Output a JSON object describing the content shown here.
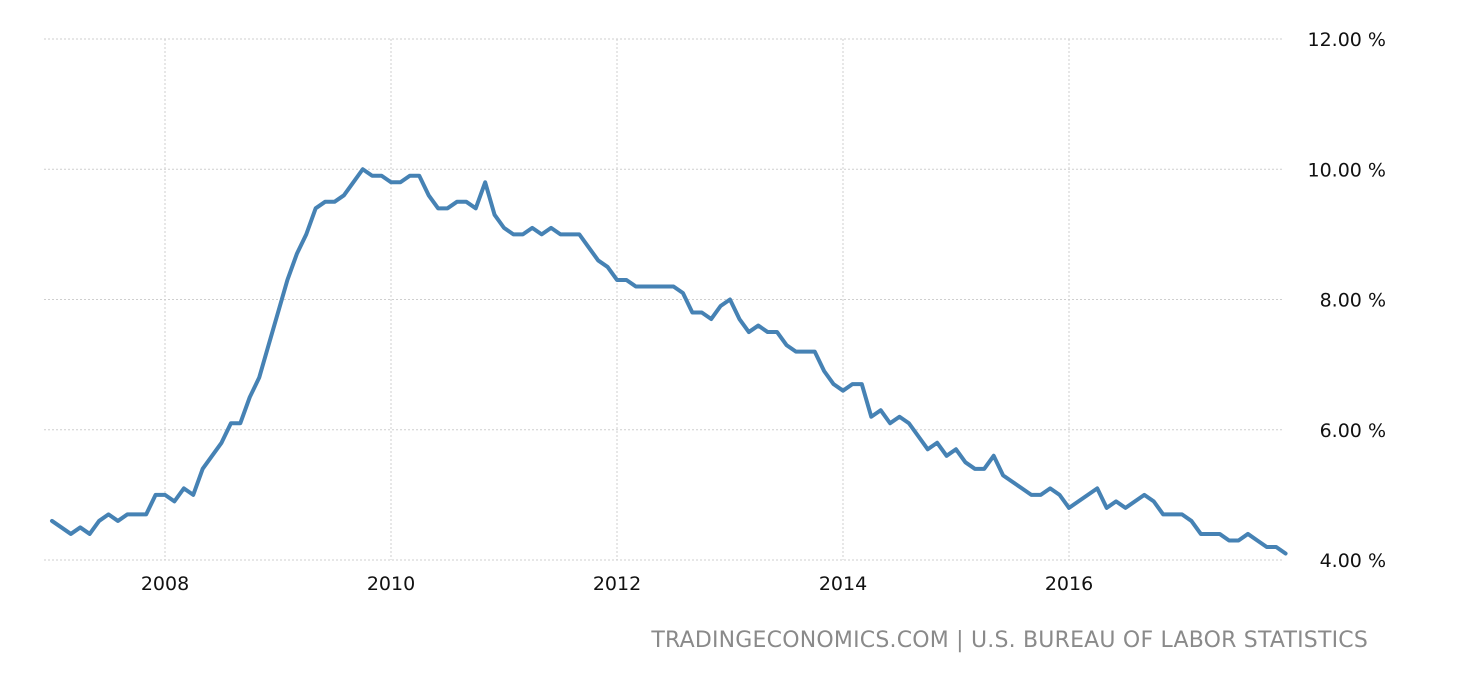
{
  "chart_data": {
    "type": "line",
    "title": "",
    "xlabel": "",
    "ylabel": "",
    "x_ticks": [
      "2008",
      "2010",
      "2012",
      "2014",
      "2016"
    ],
    "y_ticks": [
      "4.00 %",
      "6.00 %",
      "8.00 %",
      "10.00 %",
      "12.00 %"
    ],
    "ylim": [
      4,
      12
    ],
    "xlim": [
      "2007-01",
      "2017-11"
    ],
    "grid": true,
    "series_color": "#4682b4",
    "series": [
      {
        "values": [
          {
            "x": "2007-01",
            "y": 4.6
          },
          {
            "x": "2007-02",
            "y": 4.5
          },
          {
            "x": "2007-03",
            "y": 4.4
          },
          {
            "x": "2007-04",
            "y": 4.5
          },
          {
            "x": "2007-05",
            "y": 4.4
          },
          {
            "x": "2007-06",
            "y": 4.6
          },
          {
            "x": "2007-07",
            "y": 4.7
          },
          {
            "x": "2007-08",
            "y": 4.6
          },
          {
            "x": "2007-09",
            "y": 4.7
          },
          {
            "x": "2007-10",
            "y": 4.7
          },
          {
            "x": "2007-11",
            "y": 4.7
          },
          {
            "x": "2007-12",
            "y": 5.0
          },
          {
            "x": "2008-01",
            "y": 5.0
          },
          {
            "x": "2008-02",
            "y": 4.9
          },
          {
            "x": "2008-03",
            "y": 5.1
          },
          {
            "x": "2008-04",
            "y": 5.0
          },
          {
            "x": "2008-05",
            "y": 5.4
          },
          {
            "x": "2008-06",
            "y": 5.6
          },
          {
            "x": "2008-07",
            "y": 5.8
          },
          {
            "x": "2008-08",
            "y": 6.1
          },
          {
            "x": "2008-09",
            "y": 6.1
          },
          {
            "x": "2008-10",
            "y": 6.5
          },
          {
            "x": "2008-11",
            "y": 6.8
          },
          {
            "x": "2008-12",
            "y": 7.3
          },
          {
            "x": "2009-01",
            "y": 7.8
          },
          {
            "x": "2009-02",
            "y": 8.3
          },
          {
            "x": "2009-03",
            "y": 8.7
          },
          {
            "x": "2009-04",
            "y": 9.0
          },
          {
            "x": "2009-05",
            "y": 9.4
          },
          {
            "x": "2009-06",
            "y": 9.5
          },
          {
            "x": "2009-07",
            "y": 9.5
          },
          {
            "x": "2009-08",
            "y": 9.6
          },
          {
            "x": "2009-09",
            "y": 9.8
          },
          {
            "x": "2009-10",
            "y": 10.0
          },
          {
            "x": "2009-11",
            "y": 9.9
          },
          {
            "x": "2009-12",
            "y": 9.9
          },
          {
            "x": "2010-01",
            "y": 9.8
          },
          {
            "x": "2010-02",
            "y": 9.8
          },
          {
            "x": "2010-03",
            "y": 9.9
          },
          {
            "x": "2010-04",
            "y": 9.9
          },
          {
            "x": "2010-05",
            "y": 9.6
          },
          {
            "x": "2010-06",
            "y": 9.4
          },
          {
            "x": "2010-07",
            "y": 9.4
          },
          {
            "x": "2010-08",
            "y": 9.5
          },
          {
            "x": "2010-09",
            "y": 9.5
          },
          {
            "x": "2010-10",
            "y": 9.4
          },
          {
            "x": "2010-11",
            "y": 9.8
          },
          {
            "x": "2010-12",
            "y": 9.3
          },
          {
            "x": "2011-01",
            "y": 9.1
          },
          {
            "x": "2011-02",
            "y": 9.0
          },
          {
            "x": "2011-03",
            "y": 9.0
          },
          {
            "x": "2011-04",
            "y": 9.1
          },
          {
            "x": "2011-05",
            "y": 9.0
          },
          {
            "x": "2011-06",
            "y": 9.1
          },
          {
            "x": "2011-07",
            "y": 9.0
          },
          {
            "x": "2011-08",
            "y": 9.0
          },
          {
            "x": "2011-09",
            "y": 9.0
          },
          {
            "x": "2011-10",
            "y": 8.8
          },
          {
            "x": "2011-11",
            "y": 8.6
          },
          {
            "x": "2011-12",
            "y": 8.5
          },
          {
            "x": "2012-01",
            "y": 8.3
          },
          {
            "x": "2012-02",
            "y": 8.3
          },
          {
            "x": "2012-03",
            "y": 8.2
          },
          {
            "x": "2012-04",
            "y": 8.2
          },
          {
            "x": "2012-05",
            "y": 8.2
          },
          {
            "x": "2012-06",
            "y": 8.2
          },
          {
            "x": "2012-07",
            "y": 8.2
          },
          {
            "x": "2012-08",
            "y": 8.1
          },
          {
            "x": "2012-09",
            "y": 7.8
          },
          {
            "x": "2012-10",
            "y": 7.8
          },
          {
            "x": "2012-11",
            "y": 7.7
          },
          {
            "x": "2012-12",
            "y": 7.9
          },
          {
            "x": "2013-01",
            "y": 8.0
          },
          {
            "x": "2013-02",
            "y": 7.7
          },
          {
            "x": "2013-03",
            "y": 7.5
          },
          {
            "x": "2013-04",
            "y": 7.6
          },
          {
            "x": "2013-05",
            "y": 7.5
          },
          {
            "x": "2013-06",
            "y": 7.5
          },
          {
            "x": "2013-07",
            "y": 7.3
          },
          {
            "x": "2013-08",
            "y": 7.2
          },
          {
            "x": "2013-09",
            "y": 7.2
          },
          {
            "x": "2013-10",
            "y": 7.2
          },
          {
            "x": "2013-11",
            "y": 6.9
          },
          {
            "x": "2013-12",
            "y": 6.7
          },
          {
            "x": "2014-01",
            "y": 6.6
          },
          {
            "x": "2014-02",
            "y": 6.7
          },
          {
            "x": "2014-03",
            "y": 6.7
          },
          {
            "x": "2014-04",
            "y": 6.2
          },
          {
            "x": "2014-05",
            "y": 6.3
          },
          {
            "x": "2014-06",
            "y": 6.1
          },
          {
            "x": "2014-07",
            "y": 6.2
          },
          {
            "x": "2014-08",
            "y": 6.1
          },
          {
            "x": "2014-09",
            "y": 5.9
          },
          {
            "x": "2014-10",
            "y": 5.7
          },
          {
            "x": "2014-11",
            "y": 5.8
          },
          {
            "x": "2014-12",
            "y": 5.6
          },
          {
            "x": "2015-01",
            "y": 5.7
          },
          {
            "x": "2015-02",
            "y": 5.5
          },
          {
            "x": "2015-03",
            "y": 5.4
          },
          {
            "x": "2015-04",
            "y": 5.4
          },
          {
            "x": "2015-05",
            "y": 5.6
          },
          {
            "x": "2015-06",
            "y": 5.3
          },
          {
            "x": "2015-07",
            "y": 5.2
          },
          {
            "x": "2015-08",
            "y": 5.1
          },
          {
            "x": "2015-09",
            "y": 5.0
          },
          {
            "x": "2015-10",
            "y": 5.0
          },
          {
            "x": "2015-11",
            "y": 5.1
          },
          {
            "x": "2015-12",
            "y": 5.0
          },
          {
            "x": "2016-01",
            "y": 4.8
          },
          {
            "x": "2016-02",
            "y": 4.9
          },
          {
            "x": "2016-03",
            "y": 5.0
          },
          {
            "x": "2016-04",
            "y": 5.1
          },
          {
            "x": "2016-05",
            "y": 4.8
          },
          {
            "x": "2016-06",
            "y": 4.9
          },
          {
            "x": "2016-07",
            "y": 4.8
          },
          {
            "x": "2016-08",
            "y": 4.9
          },
          {
            "x": "2016-09",
            "y": 5.0
          },
          {
            "x": "2016-10",
            "y": 4.9
          },
          {
            "x": "2016-11",
            "y": 4.7
          },
          {
            "x": "2016-12",
            "y": 4.7
          },
          {
            "x": "2017-01",
            "y": 4.7
          },
          {
            "x": "2017-02",
            "y": 4.6
          },
          {
            "x": "2017-03",
            "y": 4.4
          },
          {
            "x": "2017-04",
            "y": 4.4
          },
          {
            "x": "2017-05",
            "y": 4.4
          },
          {
            "x": "2017-06",
            "y": 4.3
          },
          {
            "x": "2017-07",
            "y": 4.3
          },
          {
            "x": "2017-08",
            "y": 4.4
          },
          {
            "x": "2017-09",
            "y": 4.3
          },
          {
            "x": "2017-10",
            "y": 4.2
          },
          {
            "x": "2017-11",
            "y": 4.2
          },
          {
            "x": "2017-12",
            "y": 4.1
          }
        ]
      }
    ]
  },
  "source": "TRADINGECONOMICS.COM | U.S. BUREAU OF LABOR STATISTICS"
}
